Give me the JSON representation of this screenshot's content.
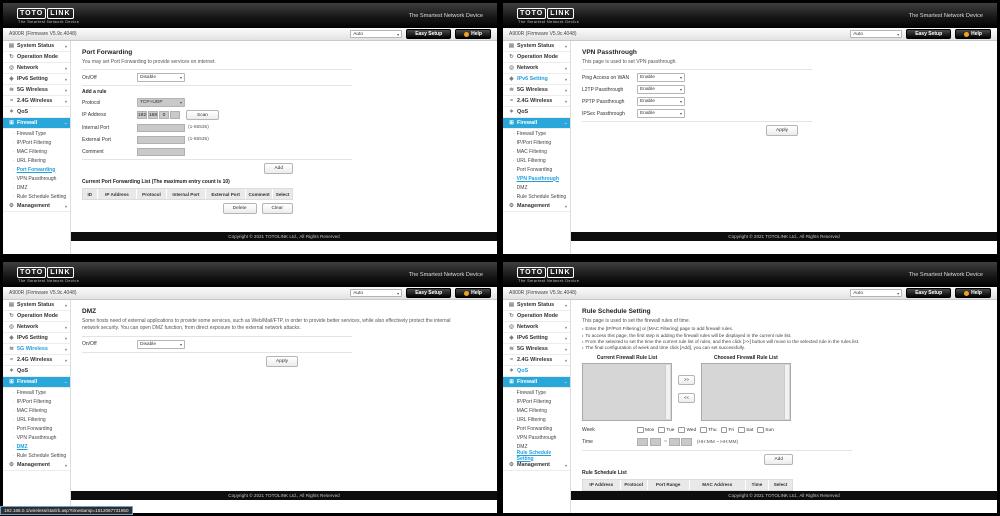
{
  "brand": {
    "logo_primary": "TOTO",
    "logo_secondary": "LINK",
    "tagline": "The Smartest Network Device",
    "header_tagline": "The Smartest Network Device"
  },
  "toolbar": {
    "device": "A900R (Firmware V5.9c.4048)",
    "language_select": "Auto",
    "easy_setup_button": "Easy Setup",
    "help_button": "Help"
  },
  "footer": {
    "copyright": "Copyright © 2021 TOTOLINK Ltd., All Rights Reserved"
  },
  "status_bar": {
    "url": "192.168.0.1/wireless/stat/rb.asp?timestamp=1612067731950"
  },
  "sidebar": {
    "colors": {
      "active_bg": "#29a7db",
      "link_blue": "#1f9ed9"
    },
    "icon_glyphs": {
      "system-status": "▤",
      "operation-mode": "↻",
      "network": "◎",
      "ipv6-setting": "◈",
      "5g-wireless": "≋",
      "2.4g-wireless": "≈",
      "qos": "✶",
      "firewall": "⊞",
      "management": "⚙"
    },
    "items": [
      {
        "id": "system-status",
        "label": "System Status",
        "expandable": true
      },
      {
        "id": "operation-mode",
        "label": "Operation Mode",
        "expandable": false
      },
      {
        "id": "network",
        "label": "Network",
        "expandable": true
      },
      {
        "id": "ipv6-setting",
        "label": "IPv6 Setting",
        "expandable": true
      },
      {
        "id": "5g-wireless",
        "label": "5G Wireless",
        "expandable": true
      },
      {
        "id": "2.4g-wireless",
        "label": "2.4G Wireless",
        "expandable": true
      },
      {
        "id": "qos",
        "label": "QoS",
        "expandable": false
      },
      {
        "id": "firewall",
        "label": "Firewall",
        "expandable": true,
        "expanded": true,
        "active": true
      }
    ],
    "firewall_subitems": [
      "Firewall Type",
      "IP/Port Filtering",
      "MAC Filtering",
      "URL Filtering",
      "Port Forwarding",
      "VPN Passthrough",
      "DMZ",
      "Rule Schedule Setting"
    ],
    "management": {
      "id": "management",
      "label": "Management",
      "expandable": true
    }
  },
  "panels": [
    {
      "id": "port-forwarding",
      "active_subitem": "Port Forwarding",
      "highlighted_item": "",
      "content": {
        "title": "Port Forwarding",
        "description": "You may set Port Forwarding to provide services on internet.",
        "onoff_label": "On/Off",
        "onoff_value": "Disable",
        "add_rule_label": "Add a rule",
        "protocol_label": "Protocol",
        "protocol_value": "TCP+UDP",
        "ip_label": "IP Address",
        "ip_parts": [
          "192",
          "168",
          "0",
          ""
        ],
        "scan_button": "Scan",
        "internal_port_label": "Internal Port",
        "internal_port_hint": "(1-65535)",
        "external_port_label": "External Port",
        "external_port_hint": "(1-65535)",
        "comment_label": "Comment",
        "add_button": "Add",
        "list_title": "Current Port Forwarding List (The maximum entry count is 10)",
        "table_headers": [
          "ID",
          "IP Address",
          "Protocol",
          "Internal Port",
          "External Port",
          "Comment",
          "Select"
        ],
        "delete_button": "Delete",
        "clear_button": "Clear"
      }
    },
    {
      "id": "vpn-passthrough",
      "active_subitem": "VPN Passthrough",
      "highlighted_item": "IPv6 Setting",
      "content": {
        "title": "VPN Passthrough",
        "description": "This page is used to set VPN passthrough.",
        "rows": [
          {
            "label": "Ping Access on WAN",
            "value": "Enable"
          },
          {
            "label": "L2TP Passthrough",
            "value": "Enable"
          },
          {
            "label": "PPTP Passthrough",
            "value": "Enable"
          },
          {
            "label": "IPSec Passthrough",
            "value": "Enable"
          }
        ],
        "apply_button": "Apply"
      }
    },
    {
      "id": "dmz",
      "active_subitem": "DMZ",
      "highlighted_item": "5G Wireless",
      "content": {
        "title": "DMZ",
        "description": "Some hosts need of external applications to provide some services, such as Web/Mail/FTP, in order to provide better services, while also effectively protect the internal network security. You can open DMZ function, from direct exposure to the external network attacks.",
        "onoff_label": "On/Off",
        "onoff_value": "Disable",
        "apply_button": "Apply"
      }
    },
    {
      "id": "rule-schedule-setting",
      "active_subitem": "Rule Schedule Setting",
      "highlighted_item": "QoS",
      "content": {
        "title": "Rule Schedule Setting",
        "intro": "This page is used to set the firewall rules of time.",
        "bullets": [
          "Enter the [IP/Port Filtering] or [MAC Filtering] page to add firewall rules.",
          "To access this page, the first step is adding the firewall rules will be displayed in the current rule list.",
          "From the selected to set the time the current rule list of rules, and then click [>>] button will move to the selected rule in the rules list.",
          "The final configuration of week and time click [Add], you can set successfully."
        ],
        "current_list_label": "Current Firewall Rule List",
        "choosed_list_label": "Choosed Firewall Rule List",
        "move_right_button": ">>",
        "move_left_button": "<<",
        "week_label": "Week",
        "week_days": [
          "Mon",
          "Tue",
          "Wed",
          "Thu",
          "Fri",
          "Sat",
          "Sun"
        ],
        "time_label": "Time",
        "time_separator": "~",
        "time_hint": "(HH:MM ~ HH:MM)",
        "add_button": "Add",
        "list_title": "Rule Schedule List",
        "table_headers": [
          "IP Address",
          "Protocol",
          "Port Range",
          "MAC Address",
          "Time",
          "Select"
        ]
      }
    }
  ]
}
